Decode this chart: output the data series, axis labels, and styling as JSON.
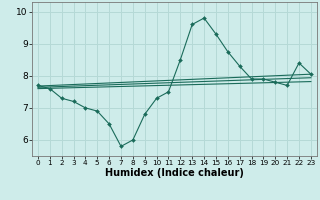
{
  "xlabel": "Humidex (Indice chaleur)",
  "background_color": "#ceecea",
  "grid_color": "#b5d9d6",
  "line_color": "#1a6b5a",
  "xlim": [
    -0.5,
    23.5
  ],
  "ylim": [
    5.5,
    10.3
  ],
  "yticks": [
    6,
    7,
    8,
    9,
    10
  ],
  "xticks": [
    0,
    1,
    2,
    3,
    4,
    5,
    6,
    7,
    8,
    9,
    10,
    11,
    12,
    13,
    14,
    15,
    16,
    17,
    18,
    19,
    20,
    21,
    22,
    23
  ],
  "series": [
    {
      "x": [
        0,
        1,
        2,
        3,
        4,
        5,
        6,
        7,
        8,
        9,
        10,
        11,
        12,
        13,
        14,
        15,
        16,
        17,
        18,
        19,
        20,
        21,
        22,
        23
      ],
      "y": [
        7.7,
        7.6,
        7.3,
        7.2,
        7.0,
        6.9,
        6.5,
        5.8,
        6.0,
        6.8,
        7.3,
        7.5,
        8.5,
        9.6,
        9.8,
        9.3,
        8.75,
        8.3,
        7.9,
        7.9,
        7.8,
        7.7,
        8.4,
        8.05
      ],
      "has_markers": true
    },
    {
      "x": [
        0,
        23
      ],
      "y": [
        7.6,
        7.82
      ],
      "has_markers": false
    },
    {
      "x": [
        0,
        23
      ],
      "y": [
        7.68,
        8.05
      ],
      "has_markers": false
    },
    {
      "x": [
        0,
        23
      ],
      "y": [
        7.64,
        7.94
      ],
      "has_markers": false
    }
  ],
  "xlabel_fontsize": 7,
  "tick_fontsize": 6.5,
  "xtick_fontsize": 5.2
}
